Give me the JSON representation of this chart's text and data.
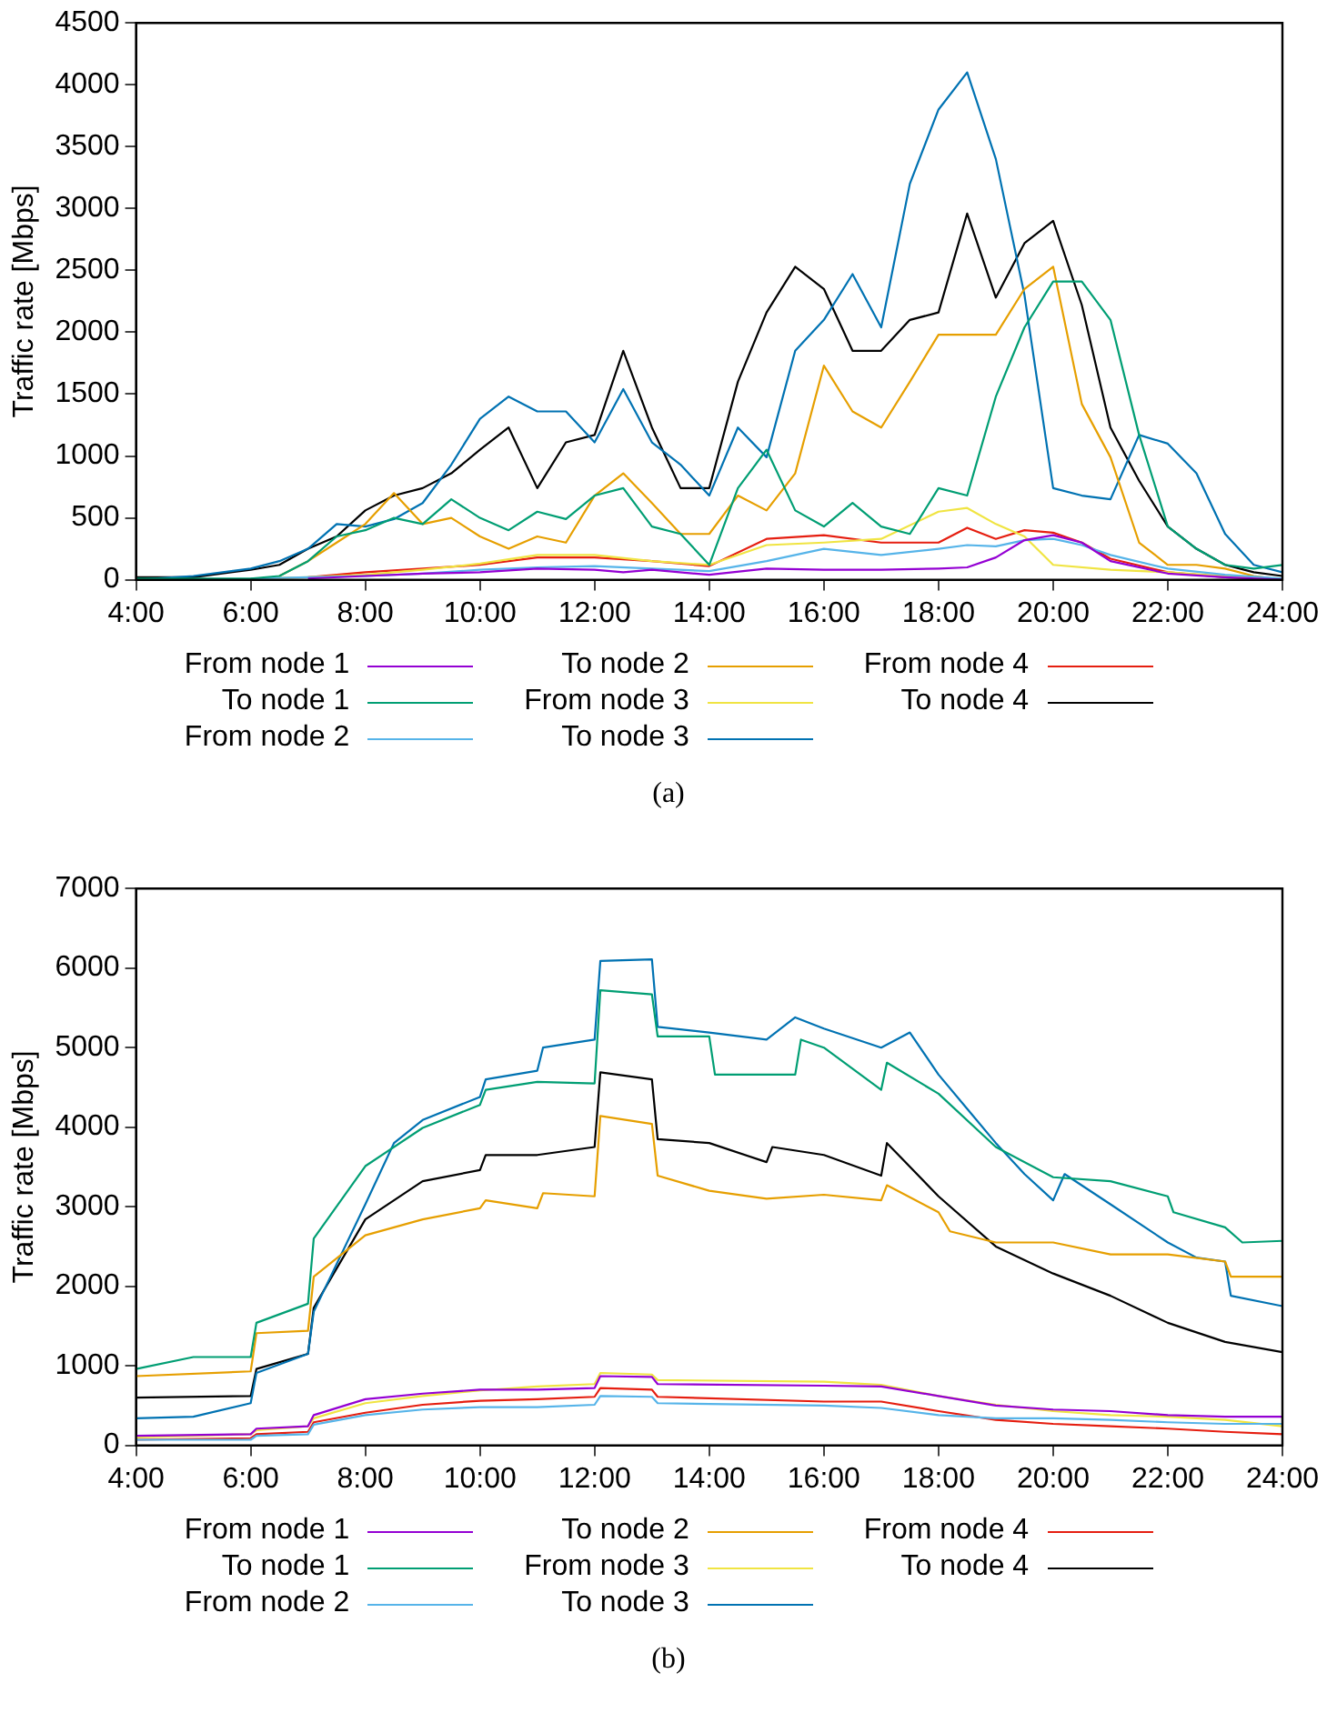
{
  "chart_data": [
    {
      "type": "line",
      "ylabel": "Traffic rate [Mbps]",
      "xlim": [
        4,
        24
      ],
      "ylim": [
        0,
        4500
      ],
      "xticks": [
        {
          "value": 4,
          "label": "4:00"
        },
        {
          "value": 6,
          "label": "6:00"
        },
        {
          "value": 8,
          "label": "8:00"
        },
        {
          "value": 10,
          "label": "10:00"
        },
        {
          "value": 12,
          "label": "12:00"
        },
        {
          "value": 14,
          "label": "14:00"
        },
        {
          "value": 16,
          "label": "16:00"
        },
        {
          "value": 18,
          "label": "18:00"
        },
        {
          "value": 20,
          "label": "20:00"
        },
        {
          "value": 22,
          "label": "22:00"
        },
        {
          "value": 24,
          "label": "24:00"
        }
      ],
      "yticks": [
        0,
        500,
        1000,
        1500,
        2000,
        2500,
        3000,
        3500,
        4000,
        4500
      ],
      "grid": false,
      "legend": "bottom",
      "annotations": [
        "(a)"
      ],
      "series": [
        {
          "name": "From node 1",
          "color": "#9400d3",
          "x": [
            7,
            8,
            9,
            10,
            11,
            12,
            12.5,
            13,
            14,
            15,
            16,
            17,
            18,
            18.5,
            19,
            19.5,
            20,
            20.5,
            21,
            22,
            23,
            24
          ],
          "values": [
            10,
            30,
            50,
            60,
            90,
            80,
            60,
            80,
            40,
            90,
            80,
            80,
            90,
            100,
            180,
            320,
            360,
            300,
            150,
            50,
            20,
            0
          ]
        },
        {
          "name": "To node 1",
          "color": "#009e73",
          "x": [
            4,
            5,
            6,
            6.5,
            7,
            7.5,
            8,
            8.5,
            9,
            9.5,
            10,
            10.5,
            11,
            11.5,
            12,
            12.5,
            13,
            13.5,
            14,
            14.5,
            15,
            15.5,
            16,
            16.5,
            17,
            17.5,
            18,
            18.5,
            19,
            19.5,
            20,
            20.5,
            21,
            21.5,
            22,
            22.5,
            23,
            23.5,
            24
          ],
          "values": [
            10,
            10,
            10,
            30,
            150,
            350,
            400,
            500,
            450,
            650,
            500,
            400,
            550,
            490,
            680,
            740,
            430,
            370,
            120,
            740,
            1050,
            560,
            430,
            620,
            430,
            370,
            740,
            680,
            1480,
            2040,
            2410,
            2410,
            2100,
            1170,
            430,
            250,
            120,
            90,
            120
          ]
        },
        {
          "name": "From node 2",
          "color": "#56b4e9",
          "x": [
            6,
            7,
            8,
            9,
            10,
            11,
            12,
            13,
            14,
            15,
            16,
            17,
            18,
            18.5,
            19,
            19.5,
            20,
            20.5,
            21,
            22,
            23,
            24
          ],
          "values": [
            10,
            20,
            30,
            50,
            80,
            100,
            110,
            90,
            70,
            150,
            250,
            200,
            250,
            280,
            270,
            320,
            330,
            280,
            200,
            90,
            40,
            10
          ]
        },
        {
          "name": "To node 2",
          "color": "#e69f00",
          "x": [
            6.5,
            7,
            7.5,
            8,
            8.5,
            9,
            9.5,
            10,
            10.5,
            11,
            11.5,
            12,
            12.5,
            13,
            13.5,
            14,
            14.5,
            15,
            15.5,
            16,
            16.5,
            17,
            17.5,
            18,
            18.5,
            19,
            19.5,
            20,
            20.5,
            21,
            21.5,
            22,
            22.5,
            23,
            23.5,
            24
          ],
          "values": [
            30,
            150,
            300,
            450,
            700,
            450,
            500,
            350,
            250,
            350,
            300,
            680,
            860,
            620,
            370,
            370,
            680,
            560,
            860,
            1730,
            1360,
            1230,
            1600,
            1980,
            1980,
            1980,
            2350,
            2530,
            1420,
            990,
            300,
            120,
            120,
            90,
            30,
            0
          ]
        },
        {
          "name": "From node 3",
          "color": "#f0e442",
          "x": [
            6,
            7,
            8,
            9,
            10,
            11,
            12,
            13,
            14,
            15,
            16,
            17,
            18,
            18.5,
            19,
            19.5,
            20,
            21,
            22,
            23,
            24
          ],
          "values": [
            10,
            20,
            40,
            80,
            130,
            200,
            200,
            150,
            120,
            280,
            300,
            330,
            550,
            580,
            450,
            350,
            120,
            80,
            60,
            30,
            0
          ]
        },
        {
          "name": "To node 3",
          "color": "#0072b2",
          "x": [
            4,
            5,
            6,
            6.5,
            7,
            7.5,
            8,
            8.5,
            9,
            9.5,
            10,
            10.5,
            11,
            11.5,
            12,
            12.5,
            13,
            13.5,
            14,
            14.5,
            15,
            15.5,
            16,
            16.5,
            17,
            17.5,
            18,
            18.5,
            19,
            19.5,
            20,
            20.5,
            21,
            21.5,
            22,
            22.5,
            23,
            23.5,
            24
          ],
          "values": [
            0,
            30,
            90,
            150,
            250,
            450,
            430,
            490,
            620,
            930,
            1300,
            1480,
            1360,
            1360,
            1110,
            1540,
            1110,
            930,
            680,
            1230,
            990,
            1850,
            2100,
            2470,
            2040,
            3200,
            3800,
            4100,
            3400,
            2300,
            740,
            680,
            650,
            1170,
            1100,
            860,
            370,
            120,
            60
          ]
        },
        {
          "name": "From node 4",
          "color": "#e51e10",
          "x": [
            7,
            8,
            9,
            10,
            11,
            12,
            13,
            14,
            15,
            16,
            17,
            18,
            18.5,
            19,
            19.5,
            20,
            20.5,
            21,
            22,
            23,
            24
          ],
          "values": [
            20,
            60,
            90,
            120,
            180,
            180,
            150,
            110,
            330,
            360,
            300,
            300,
            420,
            330,
            400,
            380,
            300,
            170,
            60,
            20,
            0
          ]
        },
        {
          "name": "To node 4",
          "color": "#000000",
          "x": [
            4,
            5,
            6,
            6.5,
            7,
            7.5,
            8,
            8.5,
            9,
            9.5,
            10,
            10.5,
            11,
            11.5,
            12,
            12.5,
            13,
            13.5,
            14,
            14.5,
            15,
            15.5,
            16,
            16.5,
            17,
            17.5,
            18,
            18.5,
            19,
            19.5,
            20,
            20.5,
            21,
            21.5,
            22,
            22.5,
            23,
            23.5,
            24
          ],
          "values": [
            20,
            20,
            80,
            120,
            250,
            350,
            560,
            680,
            740,
            860,
            1050,
            1230,
            740,
            1110,
            1170,
            1850,
            1230,
            740,
            740,
            1600,
            2160,
            2530,
            2350,
            1850,
            1850,
            2100,
            2160,
            2960,
            2280,
            2720,
            2900,
            2220,
            1230,
            800,
            430,
            250,
            120,
            60,
            30
          ]
        }
      ]
    },
    {
      "type": "line",
      "ylabel": "Traffic rate [Mbps]",
      "xlim": [
        4,
        24
      ],
      "ylim": [
        0,
        7000
      ],
      "xticks": [
        {
          "value": 4,
          "label": "4:00"
        },
        {
          "value": 6,
          "label": "6:00"
        },
        {
          "value": 8,
          "label": "8:00"
        },
        {
          "value": 10,
          "label": "10:00"
        },
        {
          "value": 12,
          "label": "12:00"
        },
        {
          "value": 14,
          "label": "14:00"
        },
        {
          "value": 16,
          "label": "16:00"
        },
        {
          "value": 18,
          "label": "18:00"
        },
        {
          "value": 20,
          "label": "20:00"
        },
        {
          "value": 22,
          "label": "22:00"
        },
        {
          "value": 24,
          "label": "24:00"
        }
      ],
      "yticks": [
        0,
        1000,
        2000,
        3000,
        4000,
        5000,
        6000,
        7000
      ],
      "grid": false,
      "legend": "bottom",
      "annotations": [
        "(b)"
      ],
      "series": [
        {
          "name": "From node 1",
          "color": "#9400d3",
          "x": [
            4,
            6,
            6.1,
            7,
            7.1,
            8,
            9,
            10,
            11,
            12,
            12.1,
            13,
            13.1,
            16,
            17,
            18,
            19,
            20,
            21,
            22,
            23,
            24
          ],
          "values": [
            120,
            140,
            210,
            240,
            380,
            580,
            650,
            700,
            700,
            720,
            870,
            860,
            770,
            750,
            740,
            620,
            500,
            450,
            430,
            380,
            360,
            360
          ]
        },
        {
          "name": "To node 1",
          "color": "#009e73",
          "x": [
            4,
            5,
            6,
            6.1,
            7,
            7.1,
            8,
            9,
            10,
            10.1,
            11,
            12,
            12.1,
            13,
            13.1,
            14,
            14.1,
            15.5,
            15.6,
            16,
            17,
            17.1,
            18,
            19,
            20,
            21,
            22,
            22.1,
            23,
            23.3,
            24
          ],
          "values": [
            960,
            1110,
            1110,
            1540,
            1780,
            2600,
            3510,
            3990,
            4280,
            4470,
            4570,
            4550,
            5720,
            5670,
            5140,
            5140,
            4660,
            4660,
            5100,
            5000,
            4470,
            4810,
            4420,
            3750,
            3370,
            3320,
            3130,
            2930,
            2740,
            2550,
            2570
          ]
        },
        {
          "name": "From node 2",
          "color": "#56b4e9",
          "x": [
            4,
            6,
            6.1,
            7,
            7.1,
            8,
            9,
            10,
            11,
            12,
            12.1,
            13,
            13.1,
            16,
            17,
            18,
            19,
            20,
            21,
            22,
            23,
            24
          ],
          "values": [
            70,
            70,
            120,
            140,
            260,
            380,
            450,
            480,
            480,
            510,
            620,
            610,
            530,
            500,
            470,
            380,
            340,
            340,
            320,
            290,
            270,
            270
          ]
        },
        {
          "name": "To node 2",
          "color": "#e69f00",
          "x": [
            4,
            6,
            6.1,
            7,
            7.1,
            8,
            9,
            10,
            10.1,
            11,
            11.1,
            12,
            12.1,
            13,
            13.1,
            14,
            15,
            16,
            17,
            17.1,
            18,
            18.2,
            19,
            20,
            21,
            22,
            23,
            23.1,
            24
          ],
          "values": [
            870,
            930,
            1410,
            1440,
            2120,
            2640,
            2840,
            2980,
            3080,
            2980,
            3170,
            3130,
            4140,
            4040,
            3390,
            3200,
            3100,
            3150,
            3080,
            3270,
            2930,
            2690,
            2550,
            2550,
            2400,
            2400,
            2310,
            2120,
            2120
          ]
        },
        {
          "name": "From node 3",
          "color": "#f0e442",
          "x": [
            4,
            6,
            6.1,
            7,
            7.1,
            8,
            9,
            10,
            11,
            12,
            12.1,
            13,
            13.1,
            16,
            17,
            18,
            19,
            20,
            21,
            22,
            23,
            24
          ],
          "values": [
            100,
            140,
            190,
            240,
            340,
            530,
            620,
            690,
            740,
            770,
            910,
            890,
            820,
            800,
            760,
            620,
            510,
            430,
            380,
            360,
            320,
            240
          ]
        },
        {
          "name": "To node 3",
          "color": "#0072b2",
          "x": [
            4,
            5,
            6,
            6.1,
            7,
            7.1,
            8,
            8.5,
            9,
            10,
            10.1,
            11,
            11.1,
            12,
            12.1,
            13,
            13.1,
            14,
            15,
            15.5,
            16,
            17,
            17.5,
            18,
            18.5,
            19,
            19.5,
            20,
            20.2,
            21,
            22,
            22.5,
            23,
            23.1,
            24
          ],
          "values": [
            340,
            360,
            530,
            910,
            1150,
            1680,
            3030,
            3800,
            4090,
            4380,
            4600,
            4710,
            5000,
            5100,
            6090,
            6110,
            5260,
            5190,
            5100,
            5380,
            5240,
            5000,
            5190,
            4660,
            4230,
            3800,
            3410,
            3080,
            3410,
            3030,
            2550,
            2360,
            2310,
            1880,
            1750
          ]
        },
        {
          "name": "From node 4",
          "color": "#e51e10",
          "x": [
            4,
            6,
            6.1,
            7,
            7.1,
            8,
            9,
            10,
            11,
            12,
            12.1,
            13,
            13.1,
            16,
            17,
            18,
            19,
            20,
            21,
            22,
            23,
            24
          ],
          "values": [
            70,
            90,
            140,
            170,
            290,
            410,
            510,
            560,
            580,
            610,
            720,
            700,
            610,
            550,
            550,
            430,
            320,
            270,
            240,
            210,
            170,
            140
          ]
        },
        {
          "name": "To node 4",
          "color": "#000000",
          "x": [
            4,
            6,
            6.1,
            7,
            7.1,
            8,
            9,
            10,
            10.1,
            11,
            12,
            12.1,
            13,
            13.1,
            14,
            15,
            15.1,
            16,
            17,
            17.1,
            18,
            19,
            20,
            21,
            22,
            23,
            24
          ],
          "values": [
            600,
            620,
            960,
            1150,
            1730,
            2840,
            3320,
            3460,
            3650,
            3650,
            3750,
            4690,
            4600,
            3850,
            3800,
            3560,
            3750,
            3650,
            3390,
            3800,
            3130,
            2500,
            2160,
            1880,
            1540,
            1300,
            1170
          ]
        }
      ]
    }
  ]
}
